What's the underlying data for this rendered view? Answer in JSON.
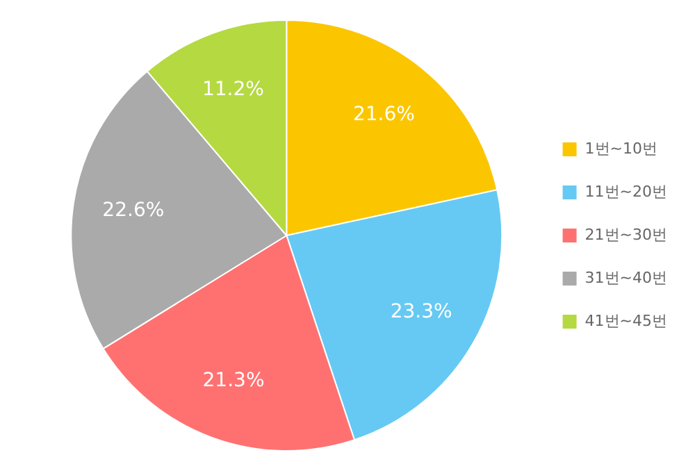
{
  "chart_data": {
    "type": "pie",
    "categories": [
      "1번~10번",
      "11번~20번",
      "21번~30번",
      "31번~40번",
      "41번~45번"
    ],
    "values": [
      21.6,
      23.3,
      21.3,
      22.6,
      11.2
    ],
    "colors": [
      "#fbc600",
      "#66c9f3",
      "#ff7171",
      "#aaaaaa",
      "#b5d941"
    ],
    "value_labels": [
      "21.6%",
      "23.3%",
      "21.3%",
      "22.6%",
      "11.2%"
    ],
    "legend": "right"
  }
}
